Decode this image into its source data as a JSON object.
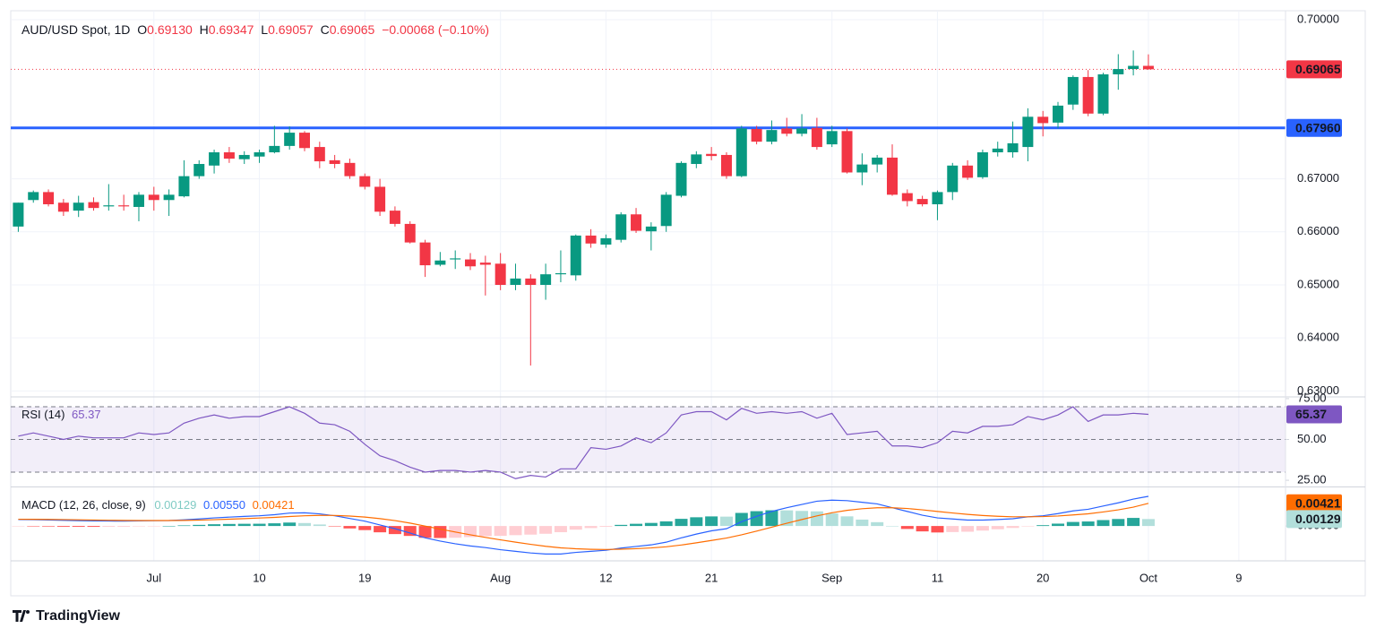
{
  "chart_data": [
    {
      "type": "candlestick",
      "title": "AUD/USD Spot, 1D",
      "legend": [
        {
          "key": "O",
          "value": "0.69130"
        },
        {
          "key": "H",
          "value": "0.69347"
        },
        {
          "key": "L",
          "value": "0.69057"
        },
        {
          "key": "C",
          "value": "0.69065"
        }
      ],
      "change": "−0.00068 (−0.10%)",
      "up_color": "#089981",
      "down_color": "#f23645",
      "open": [
        0.661,
        0.666,
        0.6675,
        0.6655,
        0.664,
        0.6656,
        0.6648,
        0.665,
        0.6647,
        0.667,
        0.666,
        0.6667,
        0.6705,
        0.6725,
        0.675,
        0.6737,
        0.6742,
        0.675,
        0.6762,
        0.6787,
        0.676,
        0.6735,
        0.673,
        0.6705,
        0.6685,
        0.664,
        0.6615,
        0.658,
        0.6538,
        0.6548,
        0.6548,
        0.6542,
        0.654,
        0.65,
        0.6512,
        0.65,
        0.652,
        0.6518,
        0.6593,
        0.6576,
        0.6585,
        0.6633,
        0.6601,
        0.6611,
        0.6668,
        0.6728,
        0.6747,
        0.6745,
        0.6705,
        0.6794,
        0.677,
        0.6795,
        0.6785,
        0.6796,
        0.6765,
        0.679,
        0.6712,
        0.6727,
        0.674,
        0.6673,
        0.6662,
        0.6652,
        0.6675,
        0.6725,
        0.6703,
        0.675,
        0.675,
        0.676,
        0.6817,
        0.6806,
        0.684,
        0.6892,
        0.6823,
        0.6897,
        0.6907,
        0.6913
      ],
      "high": [
        0.6655,
        0.6678,
        0.668,
        0.6662,
        0.6668,
        0.6665,
        0.669,
        0.667,
        0.6675,
        0.6685,
        0.668,
        0.6735,
        0.6735,
        0.6755,
        0.676,
        0.6752,
        0.6755,
        0.68,
        0.6799,
        0.679,
        0.677,
        0.6745,
        0.6738,
        0.671,
        0.67,
        0.6648,
        0.662,
        0.6585,
        0.6562,
        0.6565,
        0.656,
        0.6555,
        0.656,
        0.654,
        0.652,
        0.654,
        0.6565,
        0.6595,
        0.6605,
        0.6595,
        0.6637,
        0.6645,
        0.6618,
        0.6675,
        0.6733,
        0.6752,
        0.676,
        0.675,
        0.68,
        0.68,
        0.681,
        0.6815,
        0.6822,
        0.6815,
        0.68,
        0.6795,
        0.6748,
        0.6745,
        0.6765,
        0.668,
        0.6668,
        0.6678,
        0.673,
        0.6735,
        0.6755,
        0.677,
        0.6808,
        0.6833,
        0.6828,
        0.6845,
        0.6895,
        0.6905,
        0.69,
        0.6935,
        0.6942,
        0.69347
      ],
      "low": [
        0.66,
        0.6655,
        0.6648,
        0.663,
        0.6628,
        0.664,
        0.664,
        0.664,
        0.662,
        0.664,
        0.663,
        0.6665,
        0.67,
        0.671,
        0.673,
        0.6728,
        0.673,
        0.6748,
        0.6755,
        0.6752,
        0.672,
        0.672,
        0.67,
        0.668,
        0.663,
        0.661,
        0.6578,
        0.6515,
        0.6535,
        0.653,
        0.6528,
        0.648,
        0.649,
        0.649,
        0.6348,
        0.6472,
        0.6505,
        0.6508,
        0.657,
        0.657,
        0.658,
        0.6598,
        0.6565,
        0.66,
        0.6665,
        0.672,
        0.6735,
        0.67,
        0.6703,
        0.6765,
        0.6765,
        0.678,
        0.678,
        0.6755,
        0.676,
        0.671,
        0.6688,
        0.6712,
        0.6668,
        0.6648,
        0.6648,
        0.6622,
        0.666,
        0.6698,
        0.67,
        0.6742,
        0.674,
        0.6733,
        0.678,
        0.6795,
        0.683,
        0.6818,
        0.682,
        0.6868,
        0.6895,
        0.69057
      ],
      "close": [
        0.6655,
        0.6675,
        0.6652,
        0.6638,
        0.6655,
        0.6645,
        0.665,
        0.6648,
        0.667,
        0.666,
        0.667,
        0.6705,
        0.6728,
        0.675,
        0.6738,
        0.6745,
        0.675,
        0.6762,
        0.6787,
        0.6758,
        0.6733,
        0.6728,
        0.6705,
        0.6685,
        0.6638,
        0.6615,
        0.658,
        0.6537,
        0.6546,
        0.655,
        0.6535,
        0.6538,
        0.65,
        0.6512,
        0.65,
        0.652,
        0.6522,
        0.6593,
        0.6578,
        0.6588,
        0.6633,
        0.6602,
        0.661,
        0.667,
        0.673,
        0.6746,
        0.6743,
        0.6705,
        0.6795,
        0.677,
        0.6792,
        0.6785,
        0.6795,
        0.676,
        0.679,
        0.6712,
        0.6727,
        0.674,
        0.667,
        0.6658,
        0.6652,
        0.6675,
        0.6725,
        0.6702,
        0.675,
        0.6757,
        0.6767,
        0.6817,
        0.6805,
        0.6838,
        0.6892,
        0.6823,
        0.6897,
        0.6907,
        0.6913,
        0.69065
      ],
      "xlim": [
        -0.5,
        84.1
      ],
      "xticks": [
        {
          "value": 9,
          "label": "Jul"
        },
        {
          "value": 16,
          "label": "10"
        },
        {
          "value": 23,
          "label": "19"
        },
        {
          "value": 32,
          "label": "Aug"
        },
        {
          "value": 39,
          "label": "12"
        },
        {
          "value": 46,
          "label": "21"
        },
        {
          "value": 54,
          "label": "Sep"
        },
        {
          "value": 61,
          "label": "11"
        },
        {
          "value": 68,
          "label": "20"
        },
        {
          "value": 75,
          "label": "Oct"
        },
        {
          "value": 81,
          "label": "9"
        }
      ],
      "ylim": [
        0.62905,
        0.70169
      ],
      "yticks": [
        {
          "value": 0.63,
          "label": "0.63000"
        },
        {
          "value": 0.64,
          "label": "0.64000"
        },
        {
          "value": 0.65,
          "label": "0.65000"
        },
        {
          "value": 0.66,
          "label": "0.66000"
        },
        {
          "value": 0.67,
          "label": "0.67000"
        },
        {
          "value": 0.7,
          "label": "0.70000"
        }
      ],
      "level": {
        "value": 0.6796,
        "label": "0.67960",
        "color": "#2962ff"
      },
      "last_price": {
        "value": 0.69065,
        "label": "0.69065"
      },
      "grid": true
    },
    {
      "type": "line",
      "title": "RSI (14)",
      "color": "#7e57c2",
      "values": [
        52,
        54,
        52,
        50,
        52,
        51,
        51,
        51,
        54,
        53,
        54,
        60,
        63,
        65,
        63,
        64,
        64,
        67,
        70,
        66,
        60,
        59,
        55,
        47,
        40,
        37,
        33,
        30,
        31,
        31,
        30,
        31,
        30,
        26,
        28,
        27,
        32,
        32,
        45,
        44,
        46,
        51,
        48,
        54,
        65,
        67,
        67,
        62,
        69,
        66,
        67,
        66,
        67,
        63,
        66,
        53,
        54,
        55,
        46,
        46,
        45,
        48,
        55,
        54,
        58,
        58,
        59,
        64,
        62,
        65,
        70,
        61,
        65,
        65,
        66,
        65.37
      ],
      "last_value": 65.37,
      "levels": [
        70,
        50,
        30
      ],
      "ylim": [
        21.2,
        75.5
      ],
      "yticks": [
        {
          "value": 75,
          "label": "75.00"
        },
        {
          "value": 50,
          "label": "50.00"
        },
        {
          "value": 25,
          "label": "25.00"
        }
      ]
    },
    {
      "type": "macd",
      "title": "MACD (12, 26, close, 9)",
      "histogram": {
        "colors": [
          "#26a69a",
          "#b2dfdb",
          "#ff5252",
          "#ffcdd2"
        ],
        "values": [
          -5e-05,
          -6e-05,
          -0.0001,
          -0.00014,
          -0.00015,
          -0.00016,
          -0.00015,
          -0.00014,
          -7e-05,
          -3e-05,
          1e-05,
          0.00011,
          0.00021,
          0.00033,
          0.00038,
          0.00041,
          0.00042,
          0.0005,
          0.00064,
          0.00055,
          0.00028,
          -6e-05,
          -0.00045,
          -0.00076,
          -0.00117,
          -0.0015,
          -0.00184,
          -0.00219,
          -0.00223,
          -0.00218,
          -0.00206,
          -0.00189,
          -0.00183,
          -0.0017,
          -0.0016,
          -0.00144,
          -0.00115,
          -0.00068,
          -0.00038,
          -0.00014,
          0.00021,
          0.00041,
          0.00057,
          0.00086,
          0.00133,
          0.00162,
          0.00178,
          0.00174,
          0.00243,
          0.00275,
          0.00292,
          0.0029,
          0.0028,
          0.00272,
          0.00234,
          0.00179,
          0.00119,
          0.00071,
          1e-05,
          -0.00055,
          -0.001,
          -0.0012,
          -0.00112,
          -0.00106,
          -0.00085,
          -0.0006,
          -0.00036,
          -1e-05,
          0.00015,
          0.00044,
          0.00075,
          0.00084,
          0.0011,
          0.0013,
          0.0015,
          0.00129
        ]
      },
      "macd": {
        "color": "#2962ff",
        "values": [
          0.0012,
          0.00118,
          0.00112,
          0.00105,
          0.001,
          0.00095,
          0.00092,
          0.0009,
          0.00095,
          0.00098,
          0.00102,
          0.00115,
          0.0013,
          0.0015,
          0.00165,
          0.00178,
          0.0019,
          0.0021,
          0.0024,
          0.00245,
          0.00225,
          0.0019,
          0.0014,
          0.0009,
          0.0002,
          -0.0005,
          -0.0013,
          -0.0022,
          -0.0028,
          -0.0033,
          -0.0037,
          -0.004,
          -0.0044,
          -0.0047,
          -0.005,
          -0.0052,
          -0.0052,
          -0.0049,
          -0.0047,
          -0.0045,
          -0.0041,
          -0.0038,
          -0.0035,
          -0.003,
          -0.0022,
          -0.0015,
          -0.0009,
          -0.0005,
          0.0008,
          0.0018,
          0.0027,
          0.0034,
          0.004,
          0.0046,
          0.0048,
          0.0047,
          0.0044,
          0.0041,
          0.0034,
          0.0027,
          0.002,
          0.0015,
          0.0013,
          0.0011,
          0.0011,
          0.0012,
          0.00135,
          0.0017,
          0.0019,
          0.0023,
          0.0028,
          0.0031,
          0.0037,
          0.0043,
          0.005,
          0.0055
        ]
      },
      "signal": {
        "color": "#ff6d00",
        "values": [
          0.00125,
          0.00124,
          0.00122,
          0.00119,
          0.00115,
          0.00111,
          0.00107,
          0.00104,
          0.00102,
          0.00101,
          0.00101,
          0.00104,
          0.00109,
          0.00117,
          0.00127,
          0.00137,
          0.00148,
          0.0016,
          0.00176,
          0.0019,
          0.00197,
          0.00196,
          0.00185,
          0.00166,
          0.00137,
          0.001,
          0.00054,
          -1e-05,
          -0.00057,
          -0.00112,
          -0.00164,
          -0.00211,
          -0.00257,
          -0.003,
          -0.0034,
          -0.00376,
          -0.00405,
          -0.00422,
          -0.00432,
          -0.00436,
          -0.00431,
          -0.00421,
          -0.00407,
          -0.00386,
          -0.00353,
          -0.00312,
          -0.00268,
          -0.00224,
          -0.00163,
          -0.00095,
          -0.00022,
          0.0005,
          0.0012,
          0.00188,
          0.00246,
          0.00291,
          0.00321,
          0.00339,
          0.00339,
          0.00325,
          0.003,
          0.0027,
          0.00242,
          0.00216,
          0.00195,
          0.0018,
          0.00171,
          0.00171,
          0.00175,
          0.00186,
          0.00205,
          0.00226,
          0.0026,
          0.003,
          0.0035,
          0.00421
        ]
      },
      "last_values": {
        "histogram": 0.00129,
        "macd": {
          "value": 0.0055,
          "label": "0.00550"
        },
        "signal": 0.00421
      },
      "ylim": [
        -0.0063,
        0.007
      ],
      "yticks": [
        {
          "value": 0,
          "label": "0.00000"
        }
      ]
    }
  ],
  "branding": "TradingView"
}
